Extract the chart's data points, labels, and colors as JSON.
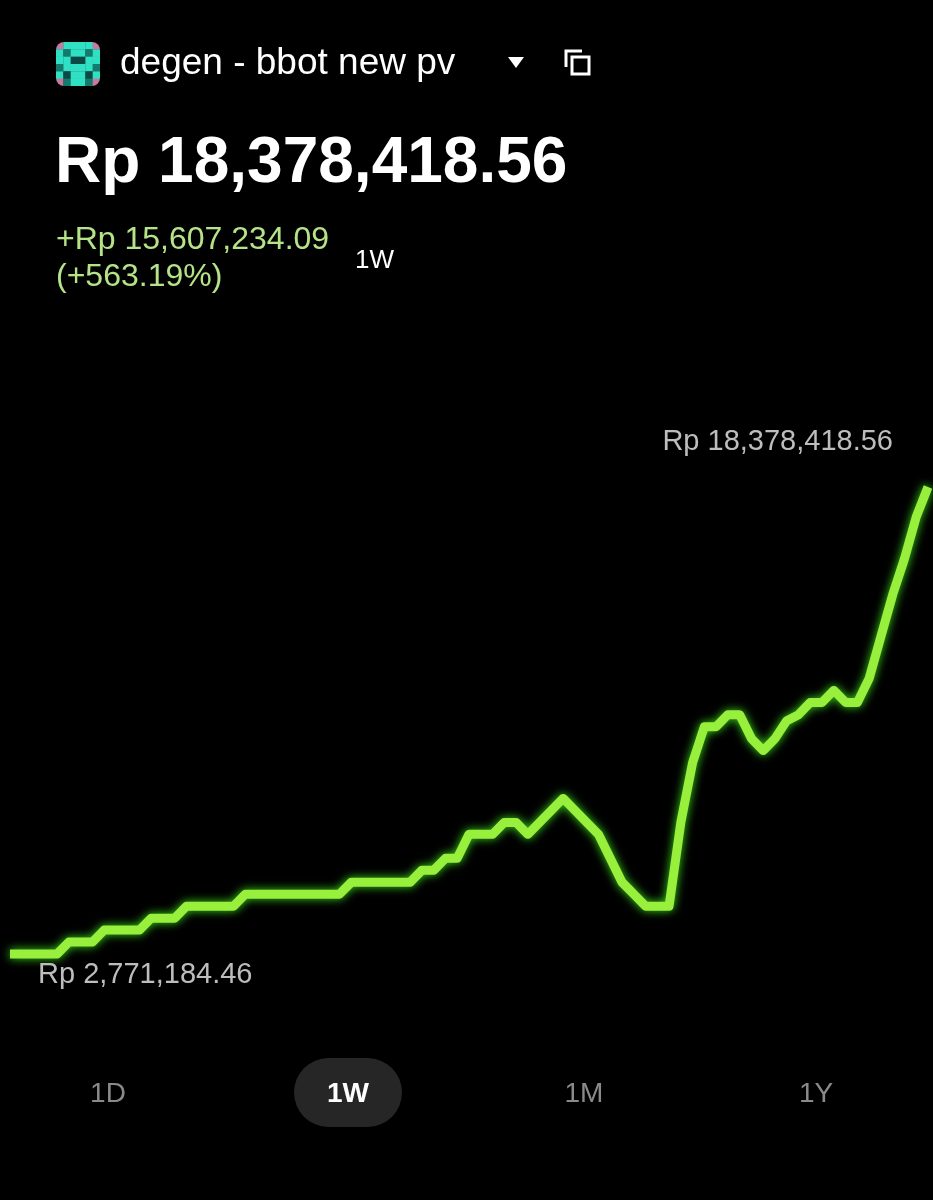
{
  "chart_data": {
    "type": "line",
    "title": "degen - bbot new pv",
    "subtitle": "Rp 18,378,418.56",
    "annotations": [
      "+Rp 15,607,234.09",
      "(+563.19%)",
      "1W",
      "1D",
      "1W",
      "1M",
      "1Y"
    ],
    "categories": [
      null,
      null,
      null,
      null,
      null,
      null,
      null,
      null,
      null,
      null,
      null,
      null,
      null,
      null,
      null,
      null,
      null,
      null,
      null,
      null,
      null,
      null,
      null,
      null,
      null,
      null,
      null,
      null,
      null,
      null,
      null,
      null,
      null,
      null,
      null,
      null,
      null,
      null,
      null,
      null,
      null,
      null,
      null,
      null,
      null,
      null,
      null,
      null,
      null,
      null,
      null,
      null,
      null,
      null,
      null,
      null,
      null,
      null,
      null,
      null,
      null,
      null,
      null,
      null,
      null,
      null,
      null,
      null,
      null,
      null,
      null,
      null,
      null,
      null,
      null,
      null,
      null,
      null,
      null
    ],
    "values": [
      2771184.46,
      2771184.46,
      2771184.46,
      2771184.46,
      2771184.46,
      3170000,
      3170000,
      3170000,
      3570000,
      3570000,
      3570000,
      3570000,
      3970000,
      3970000,
      3970000,
      4370000,
      4370000,
      4370000,
      4370000,
      4370000,
      4770000,
      4770000,
      4770000,
      4770000,
      4770000,
      4770000,
      4770000,
      4770000,
      4770000,
      5170000,
      5170000,
      5170000,
      5170000,
      5170000,
      5170000,
      5570000,
      5570000,
      5970000,
      5970000,
      6770000,
      6770000,
      6770000,
      7170000,
      7170000,
      6770000,
      7170000,
      7570000,
      7970000,
      7570000,
      7170000,
      6770000,
      5970000,
      5170000,
      4770000,
      4370000,
      4370000,
      4370000,
      7170000,
      9170000,
      10370000,
      10370000,
      10770000,
      10770000,
      9970000,
      9570000,
      9970000,
      10570000,
      10770000,
      11180000,
      11180000,
      11580000,
      11180000,
      11180000,
      11980000,
      13380000,
      14780000,
      15980000,
      17380000,
      18378418.56
    ],
    "value_labels": [
      "Rp 2,771,184.46",
      null,
      null,
      null,
      null,
      null,
      null,
      null,
      null,
      null,
      null,
      null,
      null,
      null,
      null,
      null,
      null,
      null,
      null,
      null,
      null,
      null,
      null,
      null,
      null,
      null,
      null,
      null,
      null,
      null,
      null,
      null,
      null,
      null,
      null,
      null,
      null,
      null,
      null,
      null,
      null,
      null,
      null,
      null,
      null,
      null,
      null,
      null,
      null,
      null,
      null,
      null,
      null,
      null,
      null,
      null,
      null,
      null,
      null,
      null,
      null,
      null,
      null,
      null,
      null,
      null,
      null,
      null,
      null,
      null,
      null,
      null,
      null,
      null,
      null,
      null,
      null,
      null,
      "Rp 18,378,418.56"
    ],
    "color": "#98f03c",
    "tick_labels": false
  }
}
